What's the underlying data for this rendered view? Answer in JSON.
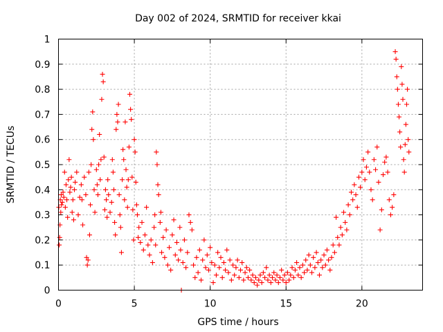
{
  "chart_data": {
    "type": "scatter",
    "title": "Day 002 of 2024, SRMTID for receiver kkai",
    "xlabel": "GPS time / hours",
    "ylabel": "SRMTID / TECUs",
    "xlim": [
      0,
      24
    ],
    "ylim": [
      0,
      1
    ],
    "xticks": [
      "0",
      "5",
      "10",
      "15",
      "20"
    ],
    "xtick_values": [
      0,
      5,
      10,
      15,
      20
    ],
    "yticks": [
      "0",
      "0.1",
      "0.2",
      "0.3",
      "0.4",
      "0.5",
      "0.6",
      "0.7",
      "0.8",
      "0.9",
      "1"
    ],
    "ytick_values": [
      0,
      0.1,
      0.2,
      0.3,
      0.4,
      0.5,
      0.6,
      0.7,
      0.8,
      0.9,
      1.0
    ],
    "grid": true,
    "marker": "+",
    "marker_color": "#ff0000",
    "series": [
      {
        "name": "SRMTID",
        "points": [
          [
            0.02,
            0.33
          ],
          [
            0.05,
            0.18
          ],
          [
            0.08,
            0.21
          ],
          [
            0.1,
            0.26
          ],
          [
            0.12,
            0.36
          ],
          [
            0.15,
            0.31
          ],
          [
            0.18,
            0.38
          ],
          [
            0.2,
            0.34
          ],
          [
            0.25,
            0.35
          ],
          [
            0.3,
            0.39
          ],
          [
            0.35,
            0.37
          ],
          [
            0.4,
            0.47
          ],
          [
            0.45,
            0.33
          ],
          [
            0.5,
            0.42
          ],
          [
            0.55,
            0.36
          ],
          [
            0.6,
            0.29
          ],
          [
            0.65,
            0.44
          ],
          [
            0.7,
            0.52
          ],
          [
            0.75,
            0.39
          ],
          [
            0.8,
            0.41
          ],
          [
            0.85,
            0.45
          ],
          [
            0.9,
            0.31
          ],
          [
            0.95,
            0.36
          ],
          [
            1.0,
            0.28
          ],
          [
            1.05,
            0.4
          ],
          [
            1.1,
            0.43
          ],
          [
            1.2,
            0.47
          ],
          [
            1.3,
            0.3
          ],
          [
            1.4,
            0.37
          ],
          [
            1.5,
            0.42
          ],
          [
            1.55,
            0.36
          ],
          [
            1.6,
            0.26
          ],
          [
            1.7,
            0.45
          ],
          [
            1.8,
            0.38
          ],
          [
            1.85,
            0.13
          ],
          [
            1.9,
            0.1
          ],
          [
            1.95,
            0.12
          ],
          [
            2.0,
            0.47
          ],
          [
            2.05,
            0.22
          ],
          [
            2.1,
            0.34
          ],
          [
            2.15,
            0.5
          ],
          [
            2.2,
            0.64
          ],
          [
            2.25,
            0.71
          ],
          [
            2.3,
            0.6
          ],
          [
            2.35,
            0.4
          ],
          [
            2.4,
            0.31
          ],
          [
            2.5,
            0.48
          ],
          [
            2.55,
            0.42
          ],
          [
            2.6,
            0.38
          ],
          [
            2.65,
            0.5
          ],
          [
            2.7,
            0.62
          ],
          [
            2.75,
            0.44
          ],
          [
            2.8,
            0.52
          ],
          [
            2.85,
            0.76
          ],
          [
            2.9,
            0.86
          ],
          [
            2.95,
            0.83
          ],
          [
            3.0,
            0.53
          ],
          [
            3.05,
            0.32
          ],
          [
            3.1,
            0.4
          ],
          [
            3.15,
            0.36
          ],
          [
            3.2,
            0.29
          ],
          [
            3.25,
            0.44
          ],
          [
            3.3,
            0.38
          ],
          [
            3.4,
            0.31
          ],
          [
            3.5,
            0.35
          ],
          [
            3.55,
            0.52
          ],
          [
            3.6,
            0.47
          ],
          [
            3.65,
            0.4
          ],
          [
            3.7,
            0.27
          ],
          [
            3.75,
            0.22
          ],
          [
            3.8,
            0.64
          ],
          [
            3.85,
            0.7
          ],
          [
            3.9,
            0.67
          ],
          [
            3.95,
            0.74
          ],
          [
            4.0,
            0.38
          ],
          [
            4.05,
            0.3
          ],
          [
            4.1,
            0.25
          ],
          [
            4.15,
            0.15
          ],
          [
            4.2,
            0.44
          ],
          [
            4.25,
            0.56
          ],
          [
            4.3,
            0.52
          ],
          [
            4.35,
            0.36
          ],
          [
            4.4,
            0.67
          ],
          [
            4.45,
            0.48
          ],
          [
            4.5,
            0.41
          ],
          [
            4.55,
            0.33
          ],
          [
            4.6,
            0.44
          ],
          [
            4.65,
            0.57
          ],
          [
            4.7,
            0.78
          ],
          [
            4.75,
            0.72
          ],
          [
            4.8,
            0.68
          ],
          [
            4.85,
            0.45
          ],
          [
            4.9,
            0.32
          ],
          [
            4.95,
            0.2
          ],
          [
            5.0,
            0.6
          ],
          [
            5.05,
            0.55
          ],
          [
            5.1,
            0.43
          ],
          [
            5.15,
            0.34
          ],
          [
            5.2,
            0.3
          ],
          [
            5.25,
            0.21
          ],
          [
            5.3,
            0.25
          ],
          [
            5.4,
            0.19
          ],
          [
            5.5,
            0.27
          ],
          [
            5.6,
            0.16
          ],
          [
            5.7,
            0.22
          ],
          [
            5.8,
            0.33
          ],
          [
            5.9,
            0.18
          ],
          [
            6.0,
            0.14
          ],
          [
            6.1,
            0.2
          ],
          [
            6.2,
            0.11
          ],
          [
            6.3,
            0.25
          ],
          [
            6.35,
            0.3
          ],
          [
            6.4,
            0.18
          ],
          [
            6.45,
            0.55
          ],
          [
            6.5,
            0.5
          ],
          [
            6.55,
            0.42
          ],
          [
            6.6,
            0.38
          ],
          [
            6.7,
            0.27
          ],
          [
            6.75,
            0.31
          ],
          [
            6.8,
            0.15
          ],
          [
            6.9,
            0.21
          ],
          [
            7.0,
            0.13
          ],
          [
            7.1,
            0.24
          ],
          [
            7.2,
            0.1
          ],
          [
            7.3,
            0.17
          ],
          [
            7.4,
            0.08
          ],
          [
            7.5,
            0.22
          ],
          [
            7.6,
            0.28
          ],
          [
            7.7,
            0.14
          ],
          [
            7.8,
            0.19
          ],
          [
            7.9,
            0.12
          ],
          [
            8.0,
            0.25
          ],
          [
            8.05,
            0.16
          ],
          [
            8.1,
            0.0
          ],
          [
            8.2,
            0.11
          ],
          [
            8.3,
            0.2
          ],
          [
            8.4,
            0.09
          ],
          [
            8.5,
            0.15
          ],
          [
            8.6,
            0.3
          ],
          [
            8.7,
            0.27
          ],
          [
            8.8,
            0.24
          ],
          [
            8.9,
            0.1
          ],
          [
            9.0,
            0.05
          ],
          [
            9.1,
            0.13
          ],
          [
            9.2,
            0.07
          ],
          [
            9.3,
            0.16
          ],
          [
            9.4,
            0.04
          ],
          [
            9.5,
            0.12
          ],
          [
            9.6,
            0.2
          ],
          [
            9.7,
            0.09
          ],
          [
            9.8,
            0.14
          ],
          [
            9.9,
            0.08
          ],
          [
            10.0,
            0.17
          ],
          [
            10.1,
            0.11
          ],
          [
            10.2,
            0.03
          ],
          [
            10.3,
            0.1
          ],
          [
            10.4,
            0.06
          ],
          [
            10.5,
            0.15
          ],
          [
            10.6,
            0.09
          ],
          [
            10.7,
            0.13
          ],
          [
            10.8,
            0.05
          ],
          [
            10.9,
            0.11
          ],
          [
            11.0,
            0.08
          ],
          [
            11.1,
            0.16
          ],
          [
            11.2,
            0.07
          ],
          [
            11.3,
            0.12
          ],
          [
            11.4,
            0.04
          ],
          [
            11.5,
            0.1
          ],
          [
            11.6,
            0.06
          ],
          [
            11.7,
            0.09
          ],
          [
            11.8,
            0.12
          ],
          [
            11.9,
            0.05
          ],
          [
            12.0,
            0.08
          ],
          [
            12.1,
            0.11
          ],
          [
            12.2,
            0.04
          ],
          [
            12.3,
            0.07
          ],
          [
            12.4,
            0.09
          ],
          [
            12.5,
            0.05
          ],
          [
            12.6,
            0.08
          ],
          [
            12.7,
            0.04
          ],
          [
            12.8,
            0.06
          ],
          [
            12.9,
            0.03
          ],
          [
            13.0,
            0.05
          ],
          [
            13.1,
            0.02
          ],
          [
            13.2,
            0.04
          ],
          [
            13.3,
            0.06
          ],
          [
            13.4,
            0.03
          ],
          [
            13.5,
            0.07
          ],
          [
            13.6,
            0.05
          ],
          [
            13.7,
            0.09
          ],
          [
            13.8,
            0.04
          ],
          [
            13.9,
            0.06
          ],
          [
            14.0,
            0.03
          ],
          [
            14.1,
            0.05
          ],
          [
            14.2,
            0.07
          ],
          [
            14.3,
            0.04
          ],
          [
            14.4,
            0.06
          ],
          [
            14.5,
            0.03
          ],
          [
            14.6,
            0.05
          ],
          [
            14.7,
            0.08
          ],
          [
            14.8,
            0.04
          ],
          [
            14.9,
            0.06
          ],
          [
            15.0,
            0.03
          ],
          [
            15.1,
            0.07
          ],
          [
            15.2,
            0.04
          ],
          [
            15.3,
            0.06
          ],
          [
            15.4,
            0.09
          ],
          [
            15.5,
            0.05
          ],
          [
            15.6,
            0.08
          ],
          [
            15.7,
            0.11
          ],
          [
            15.8,
            0.06
          ],
          [
            15.9,
            0.09
          ],
          [
            16.0,
            0.05
          ],
          [
            16.1,
            0.1
          ],
          [
            16.2,
            0.07
          ],
          [
            16.3,
            0.12
          ],
          [
            16.4,
            0.08
          ],
          [
            16.5,
            0.14
          ],
          [
            16.6,
            0.1
          ],
          [
            16.7,
            0.07
          ],
          [
            16.8,
            0.13
          ],
          [
            16.9,
            0.09
          ],
          [
            17.0,
            0.15
          ],
          [
            17.1,
            0.11
          ],
          [
            17.2,
            0.06
          ],
          [
            17.3,
            0.12
          ],
          [
            17.4,
            0.09
          ],
          [
            17.5,
            0.14
          ],
          [
            17.6,
            0.1
          ],
          [
            17.7,
            0.16
          ],
          [
            17.8,
            0.12
          ],
          [
            17.9,
            0.08
          ],
          [
            18.0,
            0.13
          ],
          [
            18.1,
            0.18
          ],
          [
            18.2,
            0.15
          ],
          [
            18.3,
            0.29
          ],
          [
            18.4,
            0.21
          ],
          [
            18.5,
            0.18
          ],
          [
            18.6,
            0.25
          ],
          [
            18.7,
            0.22
          ],
          [
            18.8,
            0.31
          ],
          [
            18.9,
            0.27
          ],
          [
            19.0,
            0.24
          ],
          [
            19.1,
            0.34
          ],
          [
            19.2,
            0.3
          ],
          [
            19.3,
            0.39
          ],
          [
            19.4,
            0.36
          ],
          [
            19.5,
            0.42
          ],
          [
            19.6,
            0.38
          ],
          [
            19.7,
            0.33
          ],
          [
            19.8,
            0.45
          ],
          [
            19.9,
            0.41
          ],
          [
            20.0,
            0.47
          ],
          [
            20.1,
            0.52
          ],
          [
            20.2,
            0.44
          ],
          [
            20.3,
            0.49
          ],
          [
            20.4,
            0.55
          ],
          [
            20.5,
            0.47
          ],
          [
            20.6,
            0.4
          ],
          [
            20.7,
            0.36
          ],
          [
            20.8,
            0.52
          ],
          [
            20.9,
            0.48
          ],
          [
            21.0,
            0.57
          ],
          [
            21.1,
            0.43
          ],
          [
            21.2,
            0.24
          ],
          [
            21.3,
            0.32
          ],
          [
            21.4,
            0.46
          ],
          [
            21.5,
            0.51
          ],
          [
            21.6,
            0.53
          ],
          [
            21.7,
            0.47
          ],
          [
            21.8,
            0.36
          ],
          [
            21.9,
            0.3
          ],
          [
            22.0,
            0.33
          ],
          [
            22.1,
            0.38
          ],
          [
            22.2,
            0.95
          ],
          [
            22.25,
            0.92
          ],
          [
            22.3,
            0.85
          ],
          [
            22.35,
            0.8
          ],
          [
            22.4,
            0.74
          ],
          [
            22.45,
            0.69
          ],
          [
            22.5,
            0.63
          ],
          [
            22.55,
            0.57
          ],
          [
            22.6,
            0.89
          ],
          [
            22.65,
            0.82
          ],
          [
            22.7,
            0.76
          ],
          [
            22.75,
            0.52
          ],
          [
            22.8,
            0.47
          ],
          [
            22.85,
            0.58
          ],
          [
            22.9,
            0.66
          ],
          [
            22.95,
            0.74
          ],
          [
            23.0,
            0.8
          ],
          [
            23.05,
            0.6
          ],
          [
            23.1,
            0.55
          ]
        ]
      }
    ]
  },
  "colors": {
    "marker": "#ff0000",
    "grid": "#a0a0a0",
    "axis": "#000000",
    "background": "#ffffff"
  }
}
